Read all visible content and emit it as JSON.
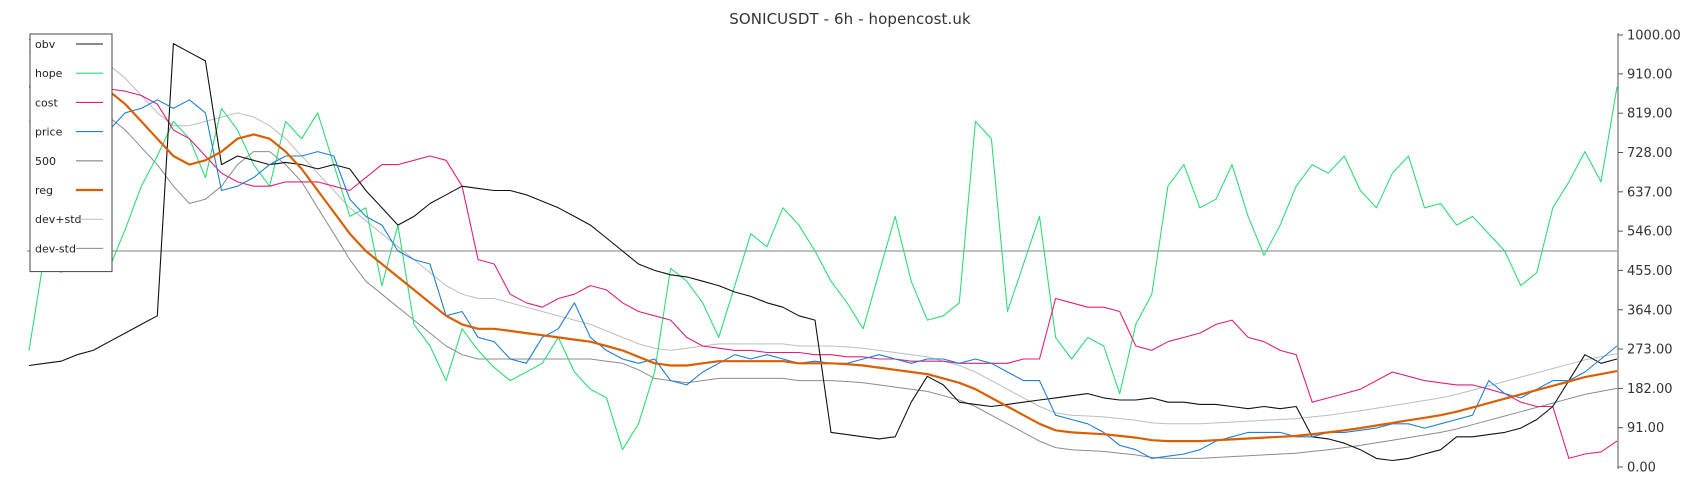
{
  "chart_data": {
    "type": "line",
    "title": "SONICUSDT - 6h - hopencost.uk",
    "xlabel": "",
    "ylabel": "",
    "ylim": [
      0,
      1000
    ],
    "yticks": [
      "1000.00",
      "910.00",
      "819.00",
      "728.00",
      "637.00",
      "546.00",
      "455.00",
      "364.00",
      "273.00",
      "182.00",
      "91.00",
      "0.00"
    ],
    "ytick_values": [
      1000,
      910,
      819,
      728,
      637,
      546,
      455,
      364,
      273,
      182,
      91,
      0
    ],
    "reference_line": 500,
    "grid": false,
    "legend_position": "top-left",
    "x_count": 100,
    "series": [
      {
        "name": "obv",
        "color": "#111111",
        "width": 1.1,
        "values": [
          235,
          240,
          245,
          260,
          270,
          290,
          310,
          330,
          350,
          980,
          960,
          940,
          700,
          720,
          710,
          700,
          705,
          700,
          690,
          700,
          690,
          640,
          600,
          560,
          580,
          610,
          630,
          650,
          645,
          640,
          640,
          630,
          615,
          600,
          580,
          560,
          530,
          500,
          470,
          455,
          445,
          440,
          430,
          420,
          405,
          395,
          380,
          370,
          350,
          340,
          80,
          75,
          70,
          65,
          70,
          150,
          210,
          190,
          150,
          145,
          140,
          145,
          150,
          155,
          160,
          165,
          170,
          160,
          155,
          155,
          160,
          150,
          150,
          145,
          145,
          140,
          135,
          140,
          135,
          140,
          70,
          65,
          55,
          40,
          20,
          15,
          20,
          30,
          40,
          70,
          70,
          75,
          80,
          90,
          110,
          140,
          200,
          260,
          240,
          250
        ]
      },
      {
        "name": "hope",
        "color": "#2fdb74",
        "width": 1.1,
        "values": [
          270,
          500,
          450,
          640,
          560,
          460,
          550,
          650,
          720,
          800,
          760,
          670,
          830,
          780,
          700,
          650,
          800,
          760,
          820,
          700,
          580,
          600,
          420,
          560,
          330,
          280,
          200,
          320,
          270,
          230,
          200,
          220,
          240,
          300,
          220,
          180,
          160,
          40,
          100,
          220,
          460,
          430,
          380,
          300,
          420,
          540,
          510,
          600,
          560,
          500,
          430,
          380,
          320,
          450,
          580,
          430,
          340,
          350,
          380,
          800,
          760,
          360,
          470,
          580,
          300,
          250,
          300,
          280,
          170,
          330,
          400,
          650,
          700,
          600,
          620,
          700,
          580,
          490,
          560,
          650,
          700,
          680,
          720,
          640,
          600,
          680,
          720,
          600,
          610,
          560,
          580,
          540,
          500,
          420,
          450,
          600,
          660,
          730,
          660,
          880
        ]
      },
      {
        "name": "cost",
        "color": "#e0207c",
        "width": 1.1,
        "values": [
          880,
          885,
          890,
          885,
          880,
          875,
          870,
          860,
          840,
          780,
          760,
          720,
          680,
          660,
          650,
          650,
          660,
          660,
          660,
          650,
          640,
          670,
          700,
          700,
          710,
          720,
          710,
          650,
          480,
          470,
          400,
          380,
          370,
          390,
          400,
          420,
          410,
          380,
          360,
          350,
          340,
          300,
          280,
          275,
          270,
          270,
          265,
          265,
          265,
          260,
          260,
          255,
          255,
          250,
          250,
          245,
          245,
          245,
          240,
          240,
          240,
          240,
          250,
          250,
          390,
          380,
          370,
          370,
          360,
          280,
          270,
          290,
          300,
          310,
          330,
          340,
          300,
          290,
          270,
          260,
          150,
          160,
          170,
          180,
          200,
          220,
          210,
          200,
          195,
          190,
          190,
          180,
          170,
          150,
          140,
          140,
          20,
          30,
          35,
          60
        ]
      },
      {
        "name": "price",
        "color": "#1e7fd6",
        "width": 1.1,
        "values": [
          990,
          960,
          930,
          800,
          820,
          780,
          820,
          830,
          850,
          830,
          850,
          820,
          640,
          650,
          670,
          700,
          720,
          720,
          730,
          720,
          620,
          580,
          560,
          500,
          480,
          470,
          350,
          360,
          300,
          290,
          250,
          240,
          300,
          320,
          380,
          300,
          270,
          250,
          240,
          250,
          200,
          190,
          220,
          240,
          260,
          250,
          260,
          250,
          240,
          245,
          240,
          240,
          250,
          260,
          250,
          240,
          250,
          250,
          240,
          250,
          240,
          220,
          200,
          200,
          120,
          110,
          100,
          80,
          50,
          40,
          20,
          25,
          30,
          40,
          60,
          70,
          80,
          80,
          80,
          70,
          70,
          80,
          80,
          85,
          90,
          100,
          100,
          90,
          100,
          110,
          120,
          200,
          170,
          160,
          180,
          200,
          200,
          220,
          250,
          280
        ]
      },
      {
        "name": "500",
        "color": "#999999",
        "width": 1.3,
        "values": [
          500,
          500,
          500,
          500,
          500,
          500,
          500,
          500,
          500,
          500,
          500,
          500,
          500,
          500,
          500,
          500,
          500,
          500,
          500,
          500,
          500,
          500,
          500,
          500,
          500,
          500,
          500,
          500,
          500,
          500,
          500,
          500,
          500,
          500,
          500,
          500,
          500,
          500,
          500,
          500,
          500,
          500,
          500,
          500,
          500,
          500,
          500,
          500,
          500,
          500,
          500,
          500,
          500,
          500,
          500,
          500,
          500,
          500,
          500,
          500,
          500,
          500,
          500,
          500,
          500,
          500,
          500,
          500,
          500,
          500,
          500,
          500,
          500,
          500,
          500,
          500,
          500,
          500,
          500,
          500,
          500,
          500,
          500,
          500,
          500,
          500,
          500,
          500,
          500,
          500,
          500,
          500,
          500,
          500,
          500,
          500,
          500,
          500,
          500,
          500
        ]
      },
      {
        "name": "reg",
        "color": "#d95f02",
        "width": 2.2,
        "values": [
          880,
          885,
          890,
          890,
          885,
          870,
          840,
          800,
          760,
          720,
          700,
          710,
          730,
          760,
          770,
          760,
          730,
          690,
          640,
          590,
          540,
          500,
          470,
          440,
          410,
          380,
          350,
          330,
          320,
          320,
          315,
          310,
          305,
          300,
          295,
          290,
          280,
          270,
          255,
          240,
          235,
          235,
          240,
          245,
          245,
          245,
          245,
          245,
          240,
          240,
          240,
          238,
          235,
          230,
          225,
          220,
          215,
          205,
          195,
          180,
          160,
          140,
          120,
          100,
          85,
          80,
          78,
          76,
          72,
          68,
          62,
          60,
          60,
          60,
          62,
          64,
          66,
          68,
          70,
          72,
          76,
          80,
          85,
          90,
          96,
          102,
          108,
          114,
          120,
          128,
          138,
          148,
          158,
          168,
          178,
          188,
          198,
          208,
          215,
          222
        ]
      },
      {
        "name": "dev+std",
        "color": "#bdbdbd",
        "width": 1.0,
        "values": [
          960,
          965,
          970,
          960,
          950,
          930,
          900,
          860,
          820,
          790,
          790,
          800,
          810,
          820,
          810,
          790,
          760,
          720,
          680,
          640,
          600,
          570,
          540,
          510,
          480,
          450,
          420,
          400,
          390,
          390,
          380,
          370,
          360,
          350,
          340,
          330,
          315,
          300,
          285,
          275,
          270,
          275,
          280,
          285,
          285,
          285,
          285,
          285,
          280,
          280,
          280,
          278,
          275,
          270,
          265,
          260,
          255,
          245,
          235,
          220,
          200,
          180,
          160,
          140,
          125,
          120,
          118,
          116,
          112,
          108,
          102,
          100,
          100,
          100,
          102,
          104,
          106,
          108,
          110,
          112,
          116,
          120,
          125,
          130,
          136,
          142,
          148,
          154,
          160,
          168,
          178,
          188,
          198,
          208,
          218,
          228,
          238,
          248,
          255,
          262
        ]
      },
      {
        "name": "dev-std",
        "color": "#8c8c8c",
        "width": 1.0,
        "values": [
          800,
          805,
          810,
          820,
          820,
          810,
          780,
          740,
          700,
          650,
          610,
          620,
          650,
          700,
          730,
          730,
          700,
          660,
          600,
          540,
          480,
          430,
          400,
          370,
          340,
          310,
          280,
          260,
          250,
          250,
          250,
          250,
          250,
          250,
          250,
          250,
          245,
          240,
          225,
          205,
          200,
          195,
          200,
          205,
          205,
          205,
          205,
          205,
          200,
          200,
          200,
          198,
          195,
          190,
          185,
          180,
          175,
          165,
          155,
          140,
          120,
          100,
          80,
          60,
          45,
          40,
          38,
          36,
          32,
          28,
          22,
          20,
          20,
          20,
          22,
          24,
          26,
          28,
          30,
          32,
          36,
          40,
          45,
          50,
          56,
          62,
          68,
          74,
          80,
          88,
          98,
          108,
          118,
          128,
          138,
          148,
          158,
          168,
          175,
          182
        ]
      }
    ]
  }
}
